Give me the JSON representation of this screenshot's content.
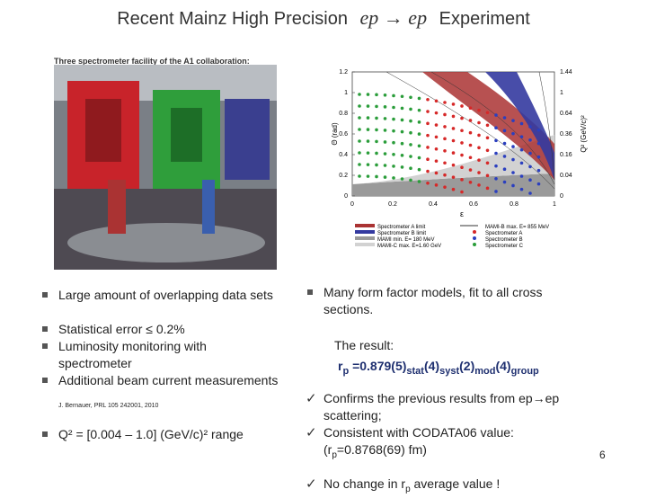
{
  "header": {
    "title_start": "Recent Mainz High Precision",
    "formula": "ep → ep",
    "title_end": "Experiment"
  },
  "photo": {
    "caption": "Three spectrometer facility of the A1 collaboration:"
  },
  "figure": {
    "y_label": "Θ (rad)",
    "y2_label": "Q² (GeV/c)²",
    "x_label": "ε",
    "yticks": [
      "0",
      "0.2",
      "0.4",
      "0.6",
      "0.8",
      "1",
      "1.2"
    ],
    "y2ticks": [
      "0",
      "0.04",
      "0.16",
      "0.36",
      "0.64",
      "1",
      "1.44"
    ],
    "xticks": [
      "0",
      "0.2",
      "0.4",
      "0.6",
      "0.8",
      "1"
    ],
    "legend_left": [
      "Spectrometer A limit",
      "Spectrometer B limit",
      "MAMI min. E= 180 MeV",
      "MAMI-C max. E=1.60 GeV"
    ],
    "legend_right": [
      "MAMI-B max. E= 855 MeV",
      "Spectrometer A",
      "Spectrometer B",
      "Spectrometer C"
    ]
  },
  "left": {
    "bullets": [
      "Large amount of overlapping data sets",
      "Statistical error ≤ 0.2%",
      "Luminosity monitoring with spectrometer",
      "Additional beam current measurements"
    ],
    "reference": "J. Bernauer, PRL 105 242001, 2010",
    "last_bullet": "Q² = [0.004 – 1.0] (GeV/c)² range"
  },
  "right": {
    "bullet": "Many form factor models, fit to all cross sections.",
    "result_label": "The result:",
    "result_parts": [
      "r",
      "p",
      " =0.879(5)",
      "stat",
      "(4)",
      "syst",
      "(2)",
      "mod",
      "(4)",
      "group"
    ],
    "checks": [
      "Confirms the previous results from ep→ep scattering;",
      "Consistent with CODATA06 value:"
    ],
    "codata_parts": [
      "(r",
      "p",
      "=0.8768(69) fm)"
    ],
    "last_check_parts": [
      "No change in r",
      "p",
      " average value !"
    ]
  },
  "page_number": "6"
}
